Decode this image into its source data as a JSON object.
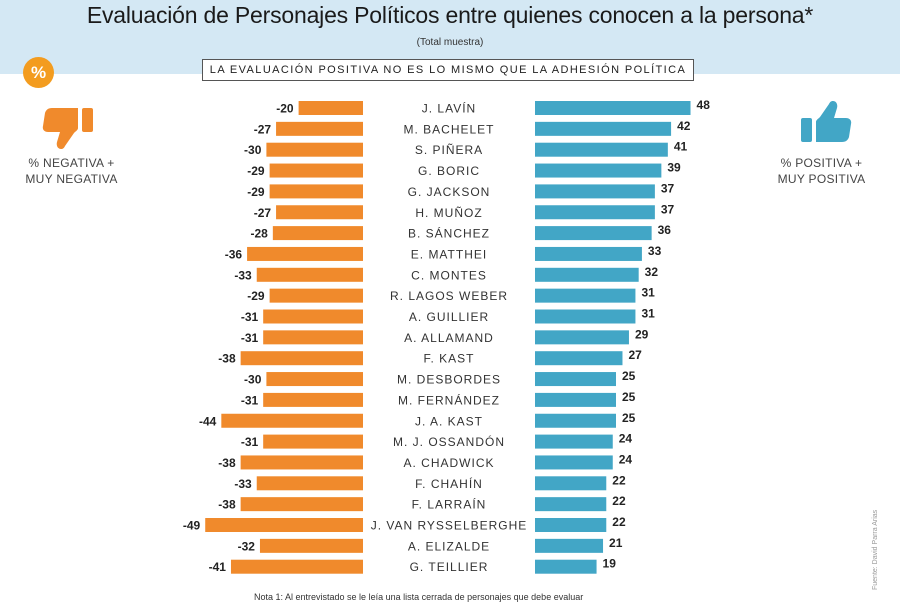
{
  "header": {
    "title": "Evaluación de Personajes Políticos entre quienes conocen a la persona*",
    "subtitle": "(Total muestra)",
    "banner": "LA EVALUACIÓN POSITIVA NO ES LO MISMO QUE LA ADHESIÓN POLÍTICA",
    "badge": "%"
  },
  "legend": {
    "negative_label_1": "% NEGATIVA +",
    "negative_label_2": "MUY NEGATIVA",
    "negative_icon": "thumbs-down-icon",
    "positive_label_1": "% POSITIVA +",
    "positive_label_2": "MUY POSITIVA",
    "positive_icon": "thumbs-up-icon"
  },
  "footer": {
    "note": "Nota 1: Al entrevistado se le leía una lista cerrada de personajes que debe evaluar",
    "credit": "Fuente: David Parra Arias"
  },
  "colors": {
    "negative": "#f08a2c",
    "positive": "#42a6c6"
  },
  "chart_data": {
    "type": "bar",
    "categories": [
      "J. LAVÍN",
      "M. BACHELET",
      "S. PIÑERA",
      "G. BORIC",
      "G. JACKSON",
      "H. MUÑOZ",
      "B. SÁNCHEZ",
      "E. MATTHEI",
      "C. MONTES",
      "R. LAGOS WEBER",
      "A. GUILLIER",
      "A. ALLAMAND",
      "F. KAST",
      "M. DESBORDES",
      "M. FERNÁNDEZ",
      "J. A. KAST",
      "M. J. OSSANDÓN",
      "A. CHADWICK",
      "F. CHAHÍN",
      "F. LARRAÍN",
      "J. VAN RYSSELBERGHE",
      "A. ELIZALDE",
      "G. TEILLIER"
    ],
    "series": [
      {
        "values": [
          -20,
          -27,
          -30,
          -29,
          -29,
          -27,
          -28,
          -36,
          -33,
          -29,
          -31,
          -31,
          -38,
          -30,
          -31,
          -44,
          -31,
          -38,
          -33,
          -38,
          -49,
          -32,
          -41
        ]
      },
      {
        "values": [
          48,
          42,
          41,
          39,
          37,
          37,
          36,
          33,
          32,
          31,
          31,
          29,
          27,
          25,
          25,
          25,
          24,
          24,
          22,
          22,
          22,
          21,
          19
        ]
      }
    ]
  }
}
